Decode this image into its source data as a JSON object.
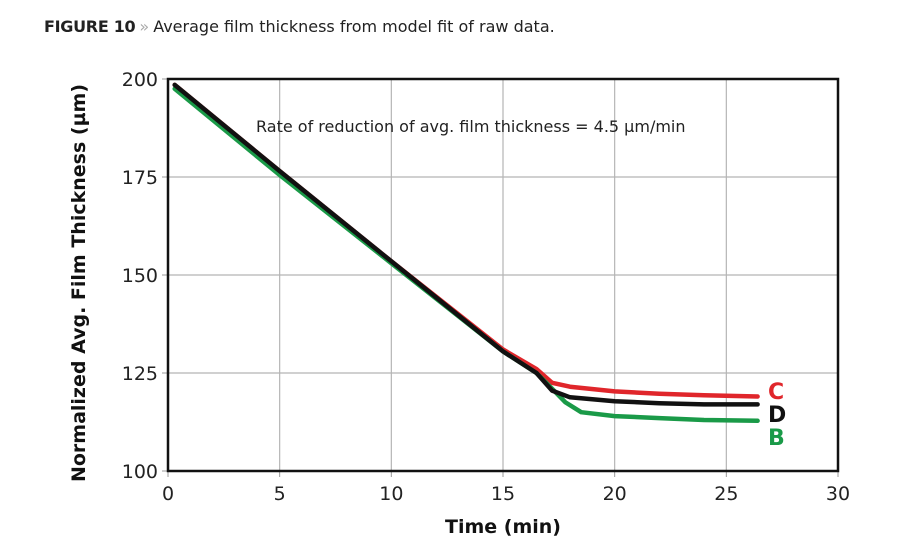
{
  "caption": {
    "label": "FIGURE 10",
    "separator": "»",
    "text": "Average film thickness from model fit of raw data."
  },
  "chart_data": {
    "type": "line",
    "title": "",
    "xlabel": "Time (min)",
    "ylabel": "Normalized Avg. Film Thickness (µm)",
    "xlim": [
      0,
      30
    ],
    "ylim": [
      100,
      200
    ],
    "xticks": [
      "0",
      "5",
      "10",
      "15",
      "20",
      "25",
      "30"
    ],
    "yticks": [
      "100",
      "125",
      "150",
      "175",
      "200"
    ],
    "grid": true,
    "annotation": "Rate of reduction of avg. film thickness = 4.5 µm/min",
    "series": [
      {
        "name": "C",
        "color": "#e0262b",
        "x": [
          0.3,
          5,
          10,
          15,
          16.5,
          17.2,
          18,
          20,
          22,
          24,
          26.4
        ],
        "y": [
          198.5,
          176.5,
          153.5,
          131,
          126,
          122.5,
          121.5,
          120.3,
          119.7,
          119.3,
          119
        ]
      },
      {
        "name": "D",
        "color": "#111111",
        "x": [
          0.3,
          5,
          10,
          15,
          16.5,
          17.2,
          18,
          20,
          22,
          24,
          26.4
        ],
        "y": [
          198.5,
          176.5,
          153.5,
          130.5,
          125,
          120.5,
          118.8,
          117.8,
          117.3,
          117,
          117
        ]
      },
      {
        "name": "B",
        "color": "#1a9a48",
        "x": [
          0.3,
          5,
          10,
          15,
          16.5,
          17.2,
          17.8,
          18.5,
          20,
          22,
          24,
          26.4
        ],
        "y": [
          197.5,
          175.5,
          153,
          130.5,
          125,
          121,
          117.5,
          115,
          114,
          113.5,
          113,
          112.8
        ]
      }
    ]
  }
}
